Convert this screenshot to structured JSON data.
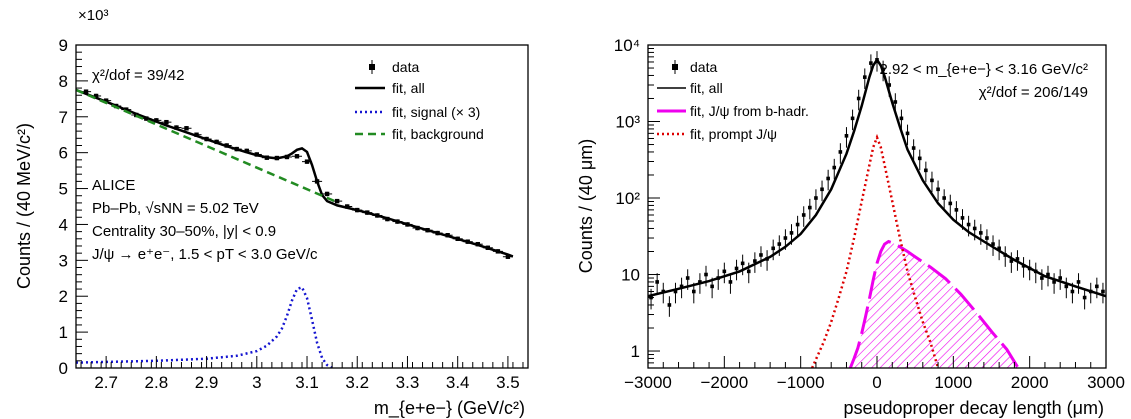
{
  "chart_data": [
    {
      "type": "line",
      "xlabel": "m_{e+e−} (GeV/c²)",
      "ylabel": "Counts / (40 MeV/c²)",
      "xlim": [
        2.64,
        3.54
      ],
      "ylim": [
        0,
        9000
      ],
      "y_exponent_label": "×10³",
      "x_ticks": [
        2.7,
        2.8,
        2.9,
        3.0,
        3.1,
        3.2,
        3.3,
        3.4,
        3.5
      ],
      "x_tick_labels": [
        "2.7",
        "2.8",
        "2.9",
        "3",
        "3.1",
        "3.2",
        "3.3",
        "3.4",
        "3.5"
      ],
      "y_ticks": [
        0,
        1000,
        2000,
        3000,
        4000,
        5000,
        6000,
        7000,
        8000,
        9000
      ],
      "y_tick_labels": [
        "0",
        "1",
        "2",
        "3",
        "4",
        "5",
        "6",
        "7",
        "8",
        "9"
      ],
      "chi2_label": "χ²/dof = 39/42",
      "annotations": [
        "ALICE",
        "Pb–Pb, √sNN = 5.02 TeV",
        "Centrality 30–50%, |y| < 0.9",
        "J/ψ → e⁺e⁻, 1.5 < pT < 3.0 GeV/c"
      ],
      "legend": {
        "placement": "top-right",
        "entries": [
          "data",
          "fit, all",
          "fit, signal (× 3)",
          "fit, background"
        ]
      },
      "series": [
        {
          "name": "data",
          "style": "markers",
          "color": "#000000",
          "x": [
            2.66,
            2.68,
            2.7,
            2.72,
            2.74,
            2.76,
            2.78,
            2.8,
            2.82,
            2.84,
            2.86,
            2.88,
            2.9,
            2.92,
            2.94,
            2.96,
            2.98,
            3.0,
            3.02,
            3.04,
            3.06,
            3.08,
            3.1,
            3.12,
            3.14,
            3.16,
            3.18,
            3.2,
            3.22,
            3.24,
            3.26,
            3.28,
            3.3,
            3.32,
            3.34,
            3.36,
            3.38,
            3.4,
            3.42,
            3.44,
            3.46,
            3.48,
            3.5
          ],
          "y": [
            7700,
            7580,
            7450,
            7300,
            7200,
            7050,
            6950,
            6900,
            6850,
            6700,
            6680,
            6500,
            6380,
            6300,
            6200,
            6100,
            6050,
            5950,
            5860,
            5850,
            5880,
            5900,
            5750,
            5200,
            4850,
            4650,
            4500,
            4400,
            4330,
            4250,
            4150,
            4080,
            4000,
            3900,
            3840,
            3760,
            3700,
            3600,
            3520,
            3450,
            3350,
            3250,
            3100
          ],
          "yerr": [
            60,
            60,
            60,
            60,
            60,
            60,
            60,
            60,
            60,
            60,
            60,
            60,
            60,
            60,
            60,
            60,
            60,
            60,
            60,
            60,
            60,
            60,
            60,
            60,
            60,
            60,
            60,
            60,
            60,
            60,
            60,
            60,
            60,
            60,
            60,
            60,
            60,
            60,
            60,
            60,
            60,
            60,
            60
          ]
        },
        {
          "name": "fit, all",
          "style": "solid",
          "color": "#000000",
          "x": [
            2.64,
            2.7,
            2.76,
            2.82,
            2.88,
            2.94,
            2.98,
            3.0,
            3.02,
            3.04,
            3.06,
            3.07,
            3.08,
            3.09,
            3.1,
            3.11,
            3.12,
            3.13,
            3.14,
            3.16,
            3.2,
            3.26,
            3.32,
            3.38,
            3.44,
            3.5,
            3.51
          ],
          "y": [
            7750,
            7420,
            7080,
            6760,
            6470,
            6180,
            6010,
            5930,
            5870,
            5840,
            5900,
            5980,
            6080,
            6120,
            6020,
            5660,
            5200,
            4820,
            4650,
            4530,
            4400,
            4170,
            3920,
            3680,
            3430,
            3160,
            3110
          ]
        },
        {
          "name": "fit, signal (× 3)",
          "style": "dotted",
          "color": "#1515d0",
          "x": [
            2.64,
            2.8,
            2.9,
            2.96,
            3.0,
            3.02,
            3.04,
            3.05,
            3.06,
            3.07,
            3.08,
            3.09,
            3.1,
            3.11,
            3.12,
            3.13,
            3.14,
            3.15
          ],
          "y": [
            150,
            200,
            260,
            340,
            470,
            620,
            880,
            1100,
            1450,
            1880,
            2200,
            2250,
            1950,
            1350,
            700,
            280,
            80,
            0
          ]
        },
        {
          "name": "fit, background",
          "style": "dashed",
          "color": "#228b22",
          "x": [
            2.64,
            3.16
          ],
          "y": [
            7750,
            4620
          ]
        }
      ]
    },
    {
      "type": "line",
      "xlabel": "pseudoproper decay length (μm)",
      "ylabel": "Counts / (40 μm)",
      "xlim": [
        -3000,
        3000
      ],
      "ylim": [
        0.6,
        10000
      ],
      "y_scale": "log",
      "x_ticks": [
        -3000,
        -2000,
        -1000,
        0,
        1000,
        2000,
        3000
      ],
      "x_tick_labels": [
        "−3000",
        "−2000",
        "−1000",
        "0",
        "1000",
        "2000",
        "3000"
      ],
      "y_ticks": [
        1,
        10,
        100,
        1000,
        10000
      ],
      "y_tick_labels": [
        "1",
        "10",
        "10²",
        "10³",
        "10⁴"
      ],
      "mass_window_label": "2.92 < m_{e+e−} < 3.16 GeV/c²",
      "chi2_label": "χ²/dof = 206/149",
      "legend": {
        "placement": "top-left",
        "entries": [
          "data",
          "fit, all",
          "fit, J/ψ from b-hadr.",
          "fit, prompt J/ψ"
        ]
      },
      "series": [
        {
          "name": "data",
          "style": "markers",
          "color": "#000000",
          "x": [
            -2960,
            -2880,
            -2800,
            -2720,
            -2640,
            -2560,
            -2480,
            -2400,
            -2320,
            -2240,
            -2160,
            -2080,
            -2000,
            -1920,
            -1840,
            -1760,
            -1680,
            -1600,
            -1520,
            -1440,
            -1360,
            -1280,
            -1200,
            -1120,
            -1040,
            -960,
            -880,
            -800,
            -720,
            -640,
            -560,
            -480,
            -400,
            -320,
            -240,
            -160,
            -80,
            0,
            80,
            160,
            240,
            320,
            400,
            480,
            560,
            640,
            720,
            800,
            880,
            960,
            1040,
            1120,
            1200,
            1280,
            1360,
            1440,
            1520,
            1600,
            1680,
            1760,
            1840,
            1920,
            2000,
            2080,
            2160,
            2240,
            2320,
            2400,
            2480,
            2560,
            2640,
            2720,
            2800,
            2880,
            2960
          ],
          "y": [
            5,
            8,
            6,
            4,
            6,
            7,
            9,
            6,
            8,
            10,
            7,
            9,
            11,
            8,
            12,
            14,
            11,
            15,
            18,
            16,
            22,
            25,
            30,
            35,
            45,
            60,
            75,
            100,
            130,
            180,
            250,
            400,
            650,
            1100,
            2000,
            3800,
            5800,
            6400,
            4800,
            3000,
            1800,
            1100,
            700,
            450,
            330,
            230,
            170,
            130,
            100,
            85,
            70,
            55,
            45,
            40,
            35,
            30,
            25,
            22,
            18,
            15,
            16,
            13,
            12,
            11,
            9,
            10,
            8,
            9,
            7,
            6,
            8,
            5,
            6,
            7,
            6
          ],
          "yerr_frac": 0.3
        },
        {
          "name": "fit, all",
          "style": "solid",
          "color": "#000000",
          "x": [
            -3000,
            -2600,
            -2200,
            -1800,
            -1400,
            -1200,
            -1000,
            -800,
            -600,
            -400,
            -300,
            -200,
            -100,
            -50,
            0,
            50,
            100,
            200,
            300,
            400,
            600,
            800,
            1000,
            1200,
            1400,
            1800,
            2200,
            2600,
            3000
          ],
          "y": [
            5.2,
            6.5,
            8.2,
            11,
            17,
            23,
            34,
            60,
            130,
            380,
            750,
            1600,
            3800,
            5400,
            6400,
            5400,
            3900,
            1750,
            850,
            430,
            170,
            85,
            52,
            36,
            27,
            15.5,
            9.5,
            7,
            5.2
          ]
        },
        {
          "name": "fit, J/ψ from b-hadr.",
          "style": "long-dash-hatched",
          "color": "#ee00ee",
          "x": [
            -350,
            -300,
            -250,
            -200,
            -150,
            -100,
            -50,
            0,
            50,
            100,
            150,
            200,
            300,
            400,
            500,
            700,
            900,
            1100,
            1300,
            1500,
            1700,
            1850
          ],
          "y": [
            0.6,
            0.8,
            1.1,
            1.7,
            2.8,
            4.8,
            8.5,
            14,
            20,
            25,
            27,
            26,
            23,
            20,
            17,
            12.5,
            8.8,
            5.5,
            3.2,
            1.8,
            1.05,
            0.6
          ]
        },
        {
          "name": "fit, prompt J/ψ",
          "style": "dotted",
          "color": "#dd0000",
          "x": [
            -850,
            -700,
            -600,
            -500,
            -400,
            -300,
            -200,
            -100,
            -50,
            0,
            50,
            100,
            200,
            300,
            400,
            500,
            600,
            700,
            800
          ],
          "y": [
            0.6,
            1.3,
            2.4,
            5,
            11,
            30,
            90,
            270,
            460,
            620,
            460,
            270,
            90,
            30,
            11,
            5,
            2.4,
            1.3,
            0.6
          ]
        }
      ]
    }
  ]
}
